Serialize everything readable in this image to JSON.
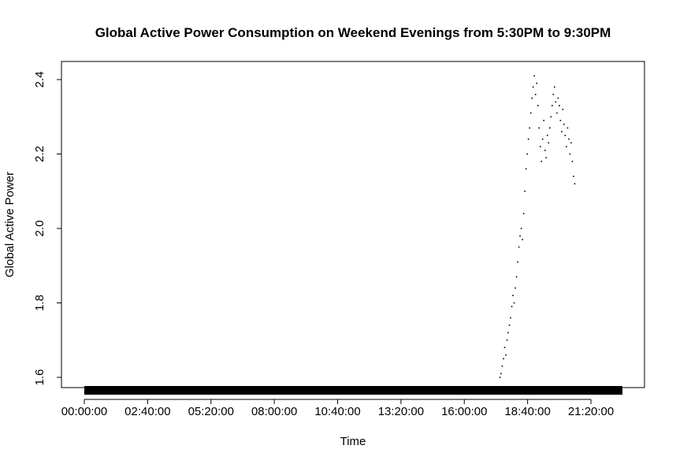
{
  "chart_data": {
    "type": "scatter",
    "title": "Global Active Power Consumption on Weekend Evenings from 5:30PM to 9:30PM",
    "xlabel": "Time",
    "ylabel": "Global Active Power",
    "x_unit": "time of day",
    "xlim": [
      "00:00:00",
      "24:00:00"
    ],
    "ylim": [
      1.57,
      2.44
    ],
    "x_ticks": [
      "00:00:00",
      "02:40:00",
      "05:20:00",
      "08:00:00",
      "10:40:00",
      "13:20:00",
      "16:00:00",
      "18:40:00",
      "21:20:00"
    ],
    "y_ticks": [
      "1.6",
      "1.8",
      "2.0",
      "2.2",
      "2.4"
    ],
    "grid": false,
    "legend": "none",
    "point_color": "#000000",
    "baseline_bar": {
      "from": "00:00:00",
      "to": "23:59:00",
      "value": 1.57
    },
    "series": [
      {
        "points": [
          [
            "17:30:00",
            1.6
          ],
          [
            "17:33:00",
            1.61
          ],
          [
            "17:36:00",
            1.63
          ],
          [
            "17:39:00",
            1.65
          ],
          [
            "17:42:00",
            1.68
          ],
          [
            "17:45:00",
            1.66
          ],
          [
            "17:48:00",
            1.7
          ],
          [
            "17:51:00",
            1.72
          ],
          [
            "17:54:00",
            1.74
          ],
          [
            "17:57:00",
            1.76
          ],
          [
            "18:00:00",
            1.79
          ],
          [
            "18:03:00",
            1.82
          ],
          [
            "18:06:00",
            1.8
          ],
          [
            "18:09:00",
            1.84
          ],
          [
            "18:12:00",
            1.87
          ],
          [
            "18:15:00",
            1.91
          ],
          [
            "18:18:00",
            1.95
          ],
          [
            "18:21:00",
            1.98
          ],
          [
            "18:24:00",
            2.0
          ],
          [
            "18:27:00",
            1.97
          ],
          [
            "18:30:00",
            2.04
          ],
          [
            "18:33:00",
            2.1
          ],
          [
            "18:36:00",
            2.16
          ],
          [
            "18:39:00",
            2.2
          ],
          [
            "18:42:00",
            2.24
          ],
          [
            "18:45:00",
            2.27
          ],
          [
            "18:48:00",
            2.31
          ],
          [
            "18:51:00",
            2.35
          ],
          [
            "18:54:00",
            2.38
          ],
          [
            "18:57:00",
            2.41
          ],
          [
            "19:00:00",
            2.36
          ],
          [
            "19:03:00",
            2.39
          ],
          [
            "19:06:00",
            2.33
          ],
          [
            "19:09:00",
            2.27
          ],
          [
            "19:12:00",
            2.22
          ],
          [
            "19:15:00",
            2.18
          ],
          [
            "19:18:00",
            2.24
          ],
          [
            "19:21:00",
            2.29
          ],
          [
            "19:24:00",
            2.21
          ],
          [
            "19:27:00",
            2.19
          ],
          [
            "19:30:00",
            2.25
          ],
          [
            "19:33:00",
            2.23
          ],
          [
            "19:36:00",
            2.27
          ],
          [
            "19:39:00",
            2.3
          ],
          [
            "19:42:00",
            2.33
          ],
          [
            "19:45:00",
            2.36
          ],
          [
            "19:48:00",
            2.38
          ],
          [
            "19:51:00",
            2.34
          ],
          [
            "19:54:00",
            2.31
          ],
          [
            "19:57:00",
            2.35
          ],
          [
            "20:00:00",
            2.33
          ],
          [
            "20:03:00",
            2.29
          ],
          [
            "20:06:00",
            2.26
          ],
          [
            "20:09:00",
            2.32
          ],
          [
            "20:12:00",
            2.28
          ],
          [
            "20:15:00",
            2.25
          ],
          [
            "20:18:00",
            2.22
          ],
          [
            "20:21:00",
            2.27
          ],
          [
            "20:24:00",
            2.24
          ],
          [
            "20:27:00",
            2.2
          ],
          [
            "20:30:00",
            2.23
          ],
          [
            "20:33:00",
            2.18
          ],
          [
            "20:36:00",
            2.14
          ],
          [
            "20:39:00",
            2.12
          ]
        ]
      }
    ]
  }
}
